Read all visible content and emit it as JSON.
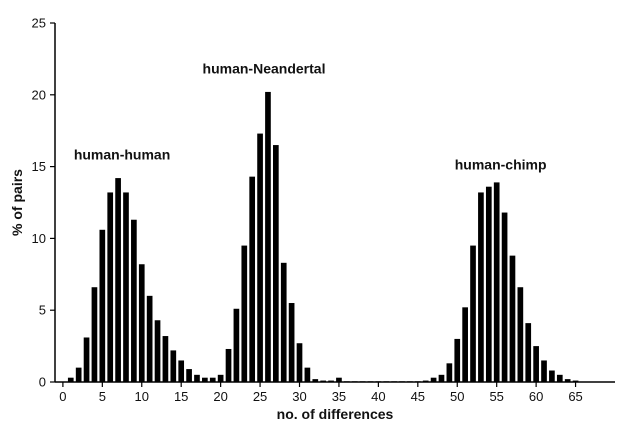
{
  "chart_data": {
    "type": "bar",
    "xlabel": "no. of differences",
    "ylabel": "% of pairs",
    "xlim": [
      -1,
      70
    ],
    "ylim": [
      0,
      25
    ],
    "x_ticks": [
      0,
      5,
      10,
      15,
      20,
      25,
      30,
      35,
      40,
      45,
      50,
      55,
      60,
      65
    ],
    "y_ticks": [
      0,
      5,
      10,
      15,
      20,
      25
    ],
    "grid": false,
    "legend": "none",
    "bar_color": "#000000",
    "annotations": [
      {
        "text": "human-human",
        "x": 7.5,
        "y": 15.5
      },
      {
        "text": "human-Neandertal",
        "x": 25.5,
        "y": 21.5
      },
      {
        "text": "human-chimp",
        "x": 55.5,
        "y": 14.8
      }
    ],
    "x": [
      1,
      2,
      3,
      4,
      5,
      6,
      7,
      8,
      9,
      10,
      11,
      12,
      13,
      14,
      15,
      16,
      17,
      18,
      19,
      20,
      21,
      22,
      23,
      24,
      25,
      26,
      27,
      28,
      29,
      30,
      31,
      32,
      33,
      34,
      35,
      36,
      37,
      38,
      39,
      40,
      41,
      42,
      43,
      44,
      45,
      46,
      47,
      48,
      49,
      50,
      51,
      52,
      53,
      54,
      55,
      56,
      57,
      58,
      59,
      60,
      61,
      62,
      63,
      64,
      65
    ],
    "values": [
      0.3,
      1.0,
      3.1,
      6.6,
      10.6,
      13.2,
      14.2,
      13.2,
      11.3,
      8.2,
      6.0,
      4.3,
      3.2,
      2.2,
      1.5,
      0.9,
      0.5,
      0.3,
      0.3,
      0.5,
      2.3,
      5.1,
      9.5,
      14.3,
      17.3,
      20.2,
      16.5,
      8.3,
      5.5,
      2.7,
      1.0,
      0.2,
      0.1,
      0.1,
      0.3,
      0.05,
      0.05,
      0.05,
      0.05,
      0.05,
      0.05,
      0.05,
      0.05,
      0.05,
      0.05,
      0.1,
      0.3,
      0.5,
      1.3,
      3.0,
      5.2,
      9.5,
      13.2,
      13.6,
      13.9,
      11.8,
      8.8,
      6.6,
      4.1,
      2.5,
      1.5,
      0.8,
      0.5,
      0.2,
      0.1
    ]
  }
}
